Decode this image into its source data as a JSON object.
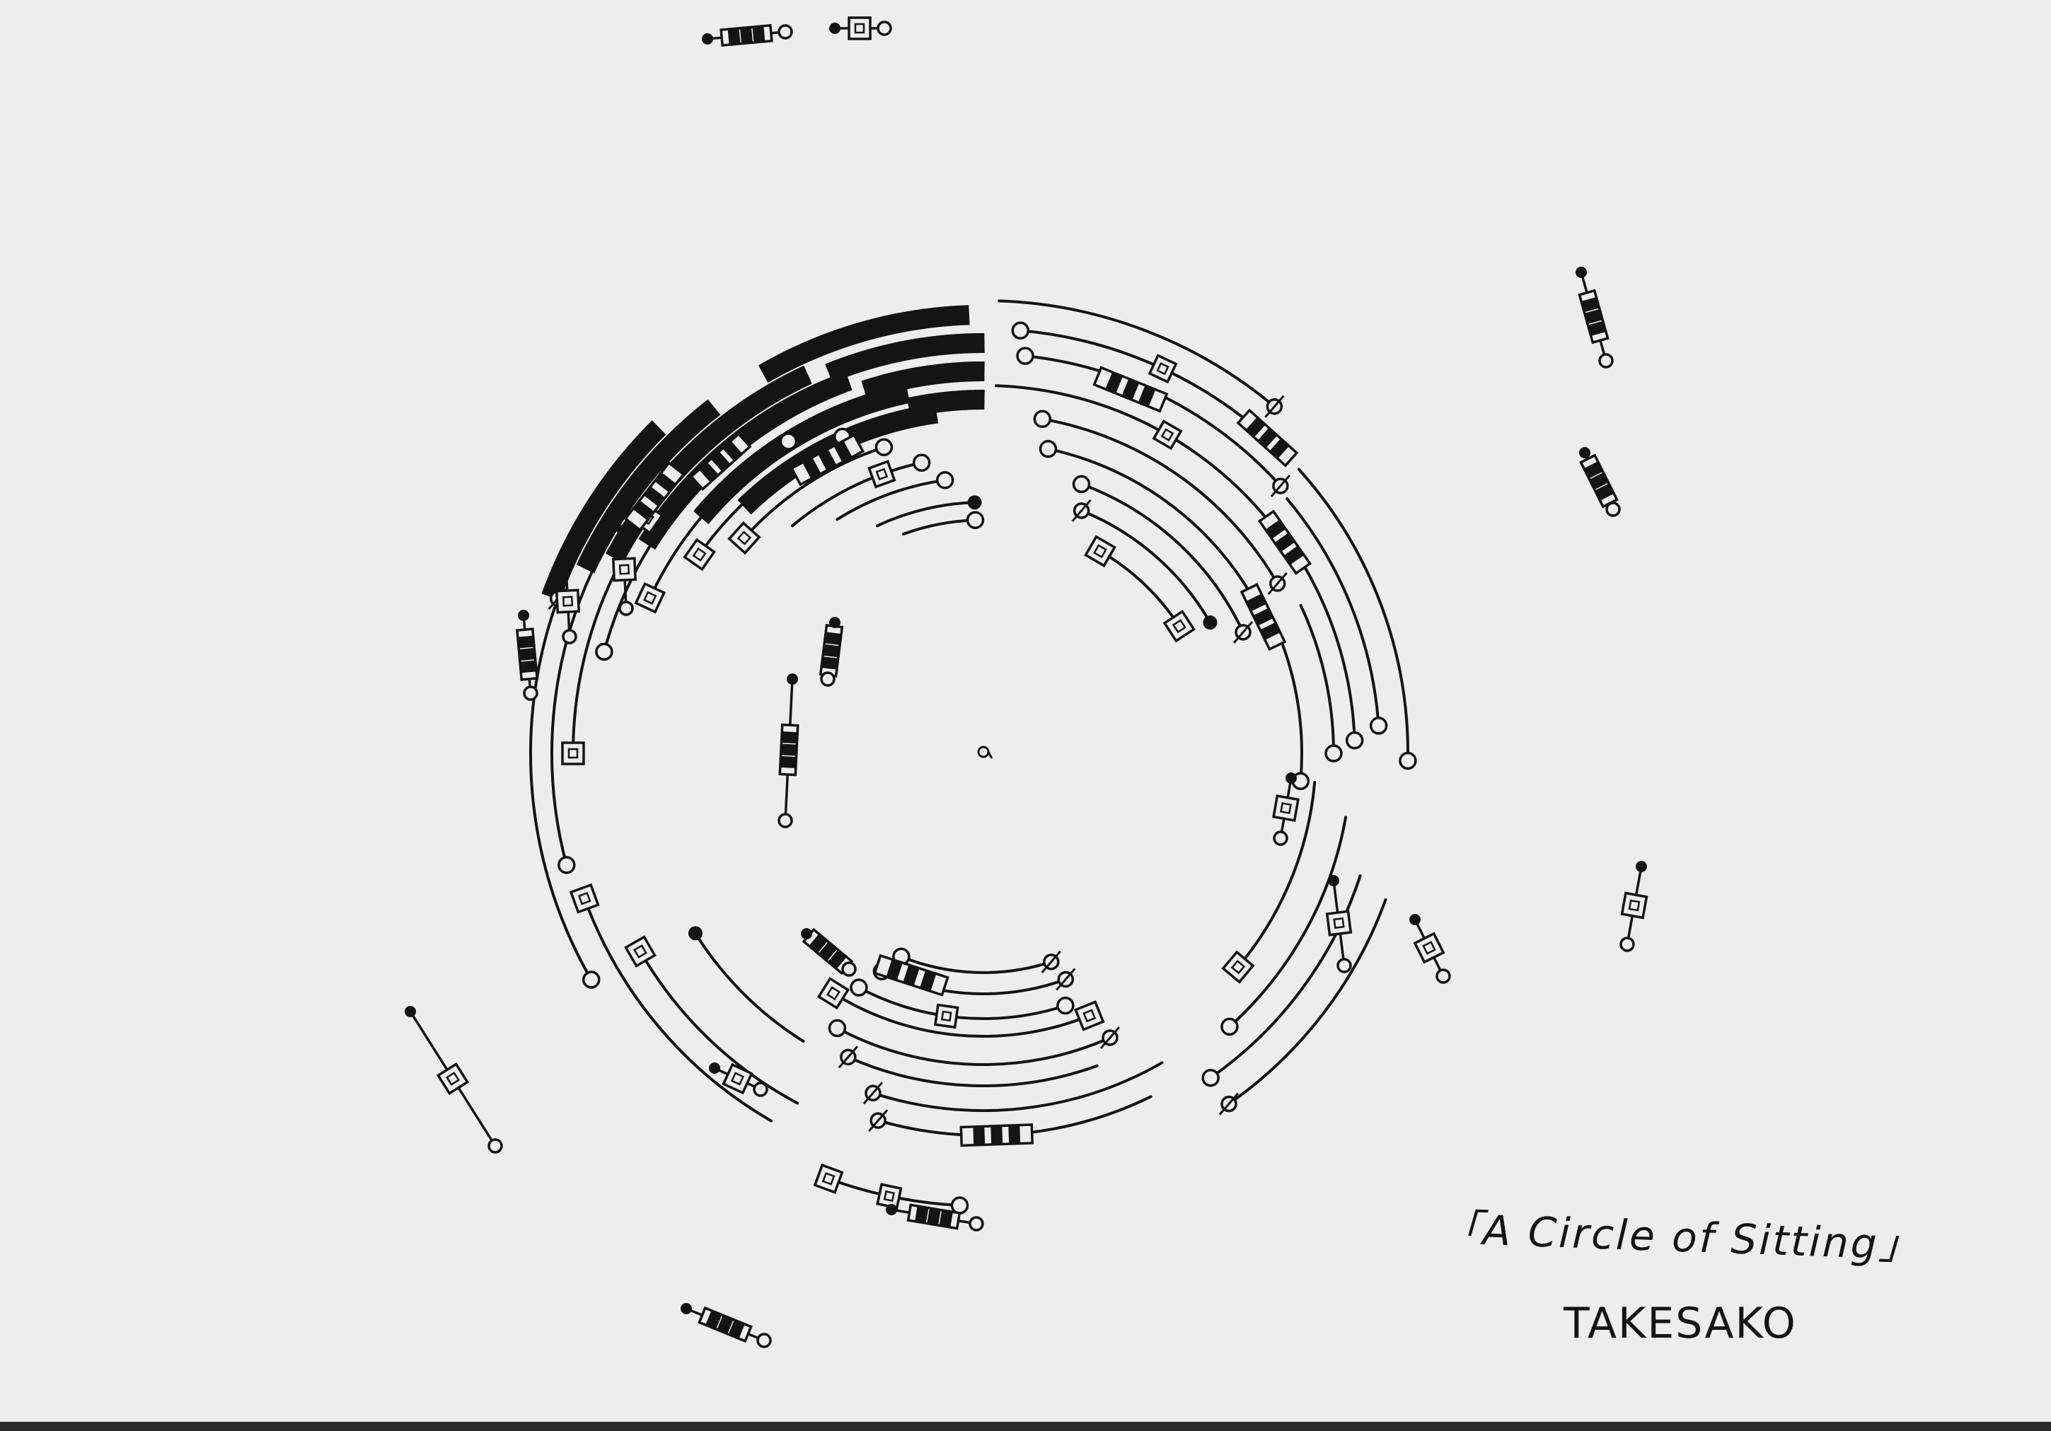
{
  "artwork": {
    "title": "「A Circle of Sitting」",
    "artist": "TAKESAKO",
    "ink_color": "#141414",
    "paper_color": "#eeedee"
  }
}
